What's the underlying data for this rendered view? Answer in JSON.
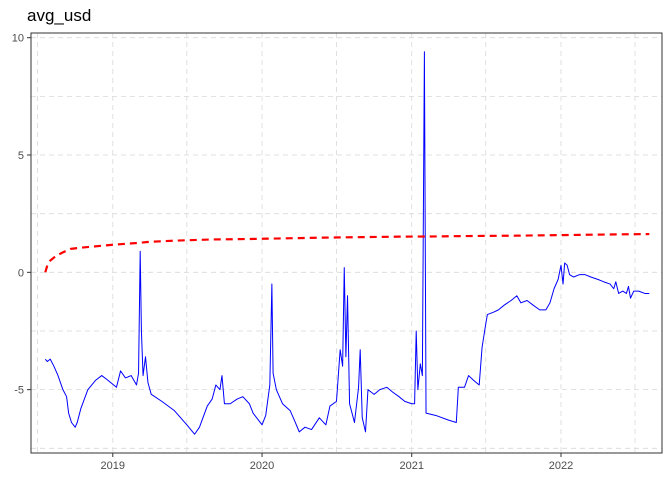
{
  "chart_data": {
    "type": "line",
    "title": "avg_usd",
    "xlabel": "",
    "ylabel": "",
    "x_ticks": [
      "2019",
      "2020",
      "2021",
      "2022"
    ],
    "y_ticks": [
      "-5",
      "0",
      "5",
      "10"
    ],
    "xlim": [
      "2018-06-15",
      "2022-09-05"
    ],
    "ylim": [
      -7.7,
      10.2
    ],
    "grid": true,
    "series": [
      {
        "style": "solid",
        "color": "#0000ff",
        "points": [
          [
            "2018-07-20",
            -3.7
          ],
          [
            "2018-07-25",
            -3.8
          ],
          [
            "2018-08-01",
            -3.7
          ],
          [
            "2018-08-10",
            -4.0
          ],
          [
            "2018-08-20",
            -4.4
          ],
          [
            "2018-09-01",
            -5.0
          ],
          [
            "2018-09-10",
            -5.3
          ],
          [
            "2018-09-15",
            -6.0
          ],
          [
            "2018-09-22",
            -6.4
          ],
          [
            "2018-10-01",
            -6.6
          ],
          [
            "2018-10-06",
            -6.4
          ],
          [
            "2018-10-15",
            -5.8
          ],
          [
            "2018-11-01",
            -5.0
          ],
          [
            "2018-11-20",
            -4.6
          ],
          [
            "2018-12-05",
            -4.4
          ],
          [
            "2018-12-20",
            -4.6
          ],
          [
            "2019-01-10",
            -4.9
          ],
          [
            "2019-01-20",
            -4.2
          ],
          [
            "2019-02-01",
            -4.5
          ],
          [
            "2019-02-15",
            -4.4
          ],
          [
            "2019-02-28",
            -4.8
          ],
          [
            "2019-03-05",
            -4.3
          ],
          [
            "2019-03-09",
            0.9
          ],
          [
            "2019-03-12",
            -2.5
          ],
          [
            "2019-03-16",
            -4.4
          ],
          [
            "2019-03-22",
            -3.6
          ],
          [
            "2019-03-28",
            -4.7
          ],
          [
            "2019-04-05",
            -5.2
          ],
          [
            "2019-05-01",
            -5.5
          ],
          [
            "2019-06-01",
            -5.9
          ],
          [
            "2019-07-01",
            -6.5
          ],
          [
            "2019-07-20",
            -6.9
          ],
          [
            "2019-08-01",
            -6.6
          ],
          [
            "2019-08-20",
            -5.7
          ],
          [
            "2019-09-01",
            -5.4
          ],
          [
            "2019-09-10",
            -4.8
          ],
          [
            "2019-09-20",
            -5.0
          ],
          [
            "2019-09-25",
            -4.4
          ],
          [
            "2019-10-01",
            -5.6
          ],
          [
            "2019-10-15",
            -5.6
          ],
          [
            "2019-11-01",
            -5.4
          ],
          [
            "2019-11-15",
            -5.3
          ],
          [
            "2019-12-01",
            -5.6
          ],
          [
            "2019-12-10",
            -6.0
          ],
          [
            "2020-01-01",
            -6.5
          ],
          [
            "2020-01-10",
            -6.1
          ],
          [
            "2020-01-20",
            -4.8
          ],
          [
            "2020-01-25",
            -0.5
          ],
          [
            "2020-01-28",
            -4.3
          ],
          [
            "2020-02-05",
            -5.0
          ],
          [
            "2020-02-20",
            -5.6
          ],
          [
            "2020-03-10",
            -5.9
          ],
          [
            "2020-03-20",
            -6.3
          ],
          [
            "2020-04-01",
            -6.8
          ],
          [
            "2020-04-15",
            -6.6
          ],
          [
            "2020-05-01",
            -6.7
          ],
          [
            "2020-05-20",
            -6.2
          ],
          [
            "2020-06-05",
            -6.5
          ],
          [
            "2020-06-15",
            -5.7
          ],
          [
            "2020-07-01",
            -5.5
          ],
          [
            "2020-07-10",
            -3.3
          ],
          [
            "2020-07-16",
            -4.0
          ],
          [
            "2020-07-20",
            0.2
          ],
          [
            "2020-07-24",
            -3.6
          ],
          [
            "2020-07-28",
            -1.0
          ],
          [
            "2020-08-02",
            -5.6
          ],
          [
            "2020-08-08",
            -6.0
          ],
          [
            "2020-08-14",
            -6.4
          ],
          [
            "2020-08-24",
            -4.9
          ],
          [
            "2020-08-28",
            -3.3
          ],
          [
            "2020-09-02",
            -6.2
          ],
          [
            "2020-09-10",
            -6.8
          ],
          [
            "2020-09-16",
            -5.0
          ],
          [
            "2020-10-01",
            -5.2
          ],
          [
            "2020-10-15",
            -5.0
          ],
          [
            "2020-11-01",
            -4.9
          ],
          [
            "2020-11-15",
            -5.1
          ],
          [
            "2020-12-01",
            -5.3
          ],
          [
            "2020-12-15",
            -5.5
          ],
          [
            "2021-01-01",
            -5.6
          ],
          [
            "2021-01-08",
            -5.6
          ],
          [
            "2021-01-12",
            -2.5
          ],
          [
            "2021-01-16",
            -5.0
          ],
          [
            "2021-01-22",
            -3.9
          ],
          [
            "2021-01-27",
            -4.4
          ],
          [
            "2021-02-01",
            9.4
          ],
          [
            "2021-02-05",
            -6.0
          ],
          [
            "2021-03-01",
            -6.1
          ],
          [
            "2021-04-01",
            -6.3
          ],
          [
            "2021-04-20",
            -6.4
          ],
          [
            "2021-04-25",
            -4.9
          ],
          [
            "2021-05-10",
            -4.9
          ],
          [
            "2021-05-20",
            -4.4
          ],
          [
            "2021-06-01",
            -4.6
          ],
          [
            "2021-06-15",
            -4.8
          ],
          [
            "2021-06-22",
            -3.2
          ],
          [
            "2021-07-01",
            -2.2
          ],
          [
            "2021-07-05",
            -1.8
          ],
          [
            "2021-07-20",
            -1.7
          ],
          [
            "2021-08-01",
            -1.6
          ],
          [
            "2021-08-15",
            -1.4
          ],
          [
            "2021-09-01",
            -1.2
          ],
          [
            "2021-09-15",
            -1.0
          ],
          [
            "2021-09-25",
            -1.3
          ],
          [
            "2021-10-10",
            -1.2
          ],
          [
            "2021-10-25",
            -1.4
          ],
          [
            "2021-11-10",
            -1.6
          ],
          [
            "2021-11-25",
            -1.6
          ],
          [
            "2021-12-05",
            -1.3
          ],
          [
            "2021-12-15",
            -0.7
          ],
          [
            "2021-12-25",
            -0.3
          ],
          [
            "2022-01-01",
            0.3
          ],
          [
            "2022-01-06",
            -0.5
          ],
          [
            "2022-01-10",
            0.4
          ],
          [
            "2022-01-16",
            0.3
          ],
          [
            "2022-01-22",
            -0.1
          ],
          [
            "2022-02-01",
            -0.2
          ],
          [
            "2022-02-15",
            -0.1
          ],
          [
            "2022-03-01",
            -0.1
          ],
          [
            "2022-03-15",
            -0.2
          ],
          [
            "2022-04-01",
            -0.3
          ],
          [
            "2022-04-15",
            -0.4
          ],
          [
            "2022-05-01",
            -0.5
          ],
          [
            "2022-05-10",
            -0.7
          ],
          [
            "2022-05-15",
            -0.4
          ],
          [
            "2022-05-22",
            -0.9
          ],
          [
            "2022-06-01",
            -0.8
          ],
          [
            "2022-06-10",
            -0.9
          ],
          [
            "2022-06-15",
            -0.6
          ],
          [
            "2022-06-20",
            -1.1
          ],
          [
            "2022-06-28",
            -0.8
          ],
          [
            "2022-07-10",
            -0.8
          ],
          [
            "2022-07-25",
            -0.9
          ],
          [
            "2022-08-05",
            -0.9
          ]
        ]
      },
      {
        "style": "dashed",
        "color": "#ff0000",
        "points": [
          [
            "2018-07-20",
            0.0
          ],
          [
            "2018-07-25",
            0.3
          ],
          [
            "2018-08-01",
            0.5
          ],
          [
            "2018-08-15",
            0.7
          ],
          [
            "2018-09-01",
            0.85
          ],
          [
            "2018-09-20",
            1.0
          ],
          [
            "2018-10-15",
            1.05
          ],
          [
            "2018-11-15",
            1.1
          ],
          [
            "2018-12-15",
            1.15
          ],
          [
            "2019-01-20",
            1.2
          ],
          [
            "2019-03-01",
            1.25
          ],
          [
            "2019-04-01",
            1.3
          ],
          [
            "2019-06-01",
            1.35
          ],
          [
            "2019-09-01",
            1.4
          ],
          [
            "2019-12-01",
            1.42
          ],
          [
            "2020-03-01",
            1.45
          ],
          [
            "2020-06-01",
            1.48
          ],
          [
            "2020-09-01",
            1.5
          ],
          [
            "2020-12-01",
            1.52
          ],
          [
            "2021-03-01",
            1.53
          ],
          [
            "2021-06-01",
            1.55
          ],
          [
            "2021-09-01",
            1.56
          ],
          [
            "2021-12-01",
            1.58
          ],
          [
            "2022-03-01",
            1.6
          ],
          [
            "2022-06-01",
            1.62
          ],
          [
            "2022-08-05",
            1.63
          ]
        ]
      }
    ]
  }
}
